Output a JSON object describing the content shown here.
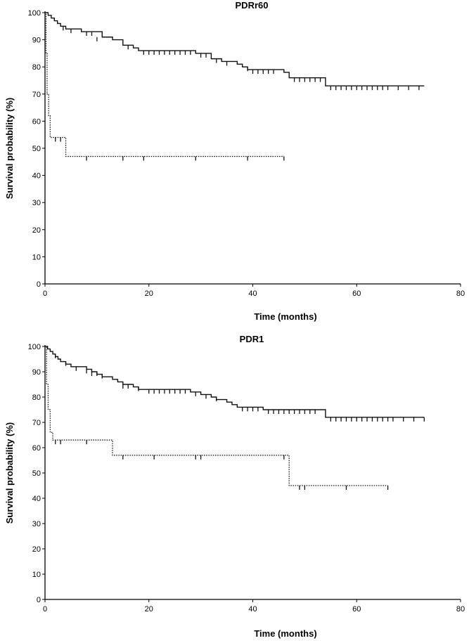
{
  "chart_data": [
    {
      "type": "line",
      "title": "PDRr60",
      "xlabel": "Time (months)",
      "ylabel": "Survival probability (%)",
      "xlim": [
        0,
        80
      ],
      "ylim": [
        0,
        100
      ],
      "xticks": [
        0,
        20,
        40,
        60,
        80
      ],
      "yticks": [
        0,
        10,
        20,
        30,
        40,
        50,
        60,
        70,
        80,
        90,
        100
      ],
      "grid": false,
      "series": [
        {
          "style": "solid",
          "steps": [
            [
              0,
              100
            ],
            [
              0.6,
              99
            ],
            [
              1.2,
              98
            ],
            [
              1.8,
              97
            ],
            [
              2.4,
              96
            ],
            [
              3,
              95
            ],
            [
              4,
              94
            ],
            [
              7,
              93
            ],
            [
              11,
              91
            ],
            [
              13,
              90
            ],
            [
              15,
              88
            ],
            [
              17,
              87
            ],
            [
              18,
              86
            ],
            [
              29,
              85
            ],
            [
              32,
              83
            ],
            [
              34,
              82
            ],
            [
              37,
              81
            ],
            [
              38,
              80
            ],
            [
              39,
              79
            ],
            [
              46,
              78
            ],
            [
              47,
              76
            ],
            [
              54,
              73
            ],
            [
              73,
              73
            ]
          ],
          "censored": [
            [
              3.5,
              95
            ],
            [
              5,
              94
            ],
            [
              8,
              93
            ],
            [
              9,
              93
            ],
            [
              10,
              91
            ],
            [
              16,
              88
            ],
            [
              19,
              86
            ],
            [
              20,
              86
            ],
            [
              21,
              86
            ],
            [
              22,
              86
            ],
            [
              23,
              86
            ],
            [
              24,
              86
            ],
            [
              25,
              86
            ],
            [
              26,
              86
            ],
            [
              27,
              86
            ],
            [
              28,
              86
            ],
            [
              30,
              85
            ],
            [
              31,
              85
            ],
            [
              33,
              83
            ],
            [
              35,
              82
            ],
            [
              39,
              80
            ],
            [
              40,
              79
            ],
            [
              41,
              79
            ],
            [
              42,
              79
            ],
            [
              43,
              79
            ],
            [
              44,
              79
            ],
            [
              48,
              76
            ],
            [
              49,
              76
            ],
            [
              50,
              76
            ],
            [
              51,
              76
            ],
            [
              52,
              76
            ],
            [
              53,
              76
            ],
            [
              55,
              73
            ],
            [
              56,
              73
            ],
            [
              57,
              73
            ],
            [
              58,
              73
            ],
            [
              59,
              73
            ],
            [
              60,
              73
            ],
            [
              61,
              73
            ],
            [
              62,
              73
            ],
            [
              63,
              73
            ],
            [
              64,
              73
            ],
            [
              65,
              73
            ],
            [
              66,
              73
            ],
            [
              68,
              73
            ],
            [
              70,
              73
            ],
            [
              72,
              73
            ]
          ]
        },
        {
          "style": "dotted",
          "steps": [
            [
              0,
              100
            ],
            [
              0.2,
              85
            ],
            [
              0.4,
              70
            ],
            [
              0.7,
              62
            ],
            [
              1,
              54
            ],
            [
              4,
              47
            ],
            [
              46,
              47
            ]
          ],
          "censored": [
            [
              2,
              54
            ],
            [
              3,
              54
            ],
            [
              8,
              47
            ],
            [
              15,
              47
            ],
            [
              19,
              47
            ],
            [
              29,
              47
            ],
            [
              39,
              47
            ],
            [
              46,
              47
            ]
          ]
        }
      ]
    },
    {
      "type": "line",
      "title": "PDR1",
      "xlabel": "Time (months)",
      "ylabel": "Survival probability (%)",
      "xlim": [
        0,
        80
      ],
      "ylim": [
        0,
        100
      ],
      "xticks": [
        0,
        20,
        40,
        60,
        80
      ],
      "yticks": [
        0,
        10,
        20,
        30,
        40,
        50,
        60,
        70,
        80,
        90,
        100
      ],
      "grid": false,
      "series": [
        {
          "style": "solid",
          "steps": [
            [
              0,
              100
            ],
            [
              0.5,
              99
            ],
            [
              1,
              98
            ],
            [
              1.5,
              97
            ],
            [
              2,
              96
            ],
            [
              2.5,
              95
            ],
            [
              3,
              94
            ],
            [
              4,
              93
            ],
            [
              5,
              92
            ],
            [
              8,
              91
            ],
            [
              9,
              90
            ],
            [
              10,
              89
            ],
            [
              11,
              88
            ],
            [
              13,
              87
            ],
            [
              14,
              86
            ],
            [
              15,
              85
            ],
            [
              17,
              84
            ],
            [
              18,
              83
            ],
            [
              28,
              82
            ],
            [
              30,
              81
            ],
            [
              32,
              80
            ],
            [
              33,
              79
            ],
            [
              35,
              78
            ],
            [
              36,
              77
            ],
            [
              37,
              76
            ],
            [
              42,
              75
            ],
            [
              54,
              72
            ],
            [
              73,
              72
            ]
          ],
          "censored": [
            [
              2,
              97
            ],
            [
              4,
              94
            ],
            [
              6,
              92
            ],
            [
              8,
              91
            ],
            [
              9,
              90
            ],
            [
              10,
              90
            ],
            [
              11,
              89
            ],
            [
              15,
              85
            ],
            [
              16,
              85
            ],
            [
              18,
              84
            ],
            [
              20,
              83
            ],
            [
              21,
              83
            ],
            [
              22,
              83
            ],
            [
              23,
              83
            ],
            [
              24,
              83
            ],
            [
              25,
              83
            ],
            [
              26,
              83
            ],
            [
              27,
              83
            ],
            [
              29,
              82
            ],
            [
              31,
              81
            ],
            [
              33,
              80
            ],
            [
              38,
              76
            ],
            [
              39,
              76
            ],
            [
              40,
              76
            ],
            [
              41,
              76
            ],
            [
              43,
              75
            ],
            [
              44,
              75
            ],
            [
              45,
              75
            ],
            [
              46,
              75
            ],
            [
              47,
              75
            ],
            [
              48,
              75
            ],
            [
              49,
              75
            ],
            [
              50,
              75
            ],
            [
              51,
              75
            ],
            [
              52,
              75
            ],
            [
              55,
              72
            ],
            [
              56,
              72
            ],
            [
              57,
              72
            ],
            [
              58,
              72
            ],
            [
              59,
              72
            ],
            [
              60,
              72
            ],
            [
              61,
              72
            ],
            [
              62,
              72
            ],
            [
              63,
              72
            ],
            [
              64,
              72
            ],
            [
              65,
              72
            ],
            [
              66,
              72
            ],
            [
              67,
              72
            ],
            [
              69,
              72
            ],
            [
              71,
              72
            ],
            [
              73,
              72
            ]
          ]
        },
        {
          "style": "dotted",
          "steps": [
            [
              0,
              100
            ],
            [
              0.3,
              85
            ],
            [
              0.6,
              75
            ],
            [
              1,
              66
            ],
            [
              1.5,
              63
            ],
            [
              13,
              57
            ],
            [
              47,
              45
            ],
            [
              66,
              45
            ]
          ],
          "censored": [
            [
              2,
              63
            ],
            [
              3,
              63
            ],
            [
              8,
              63
            ],
            [
              15,
              57
            ],
            [
              21,
              57
            ],
            [
              29,
              57
            ],
            [
              30,
              57
            ],
            [
              46,
              57
            ],
            [
              49,
              45
            ],
            [
              50,
              45
            ],
            [
              58,
              45
            ],
            [
              66,
              45
            ]
          ]
        }
      ]
    }
  ]
}
